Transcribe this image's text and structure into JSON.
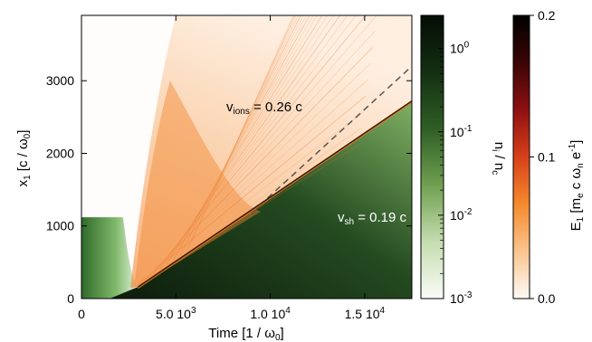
{
  "chart_data": {
    "type": "heatmap",
    "x_axis": {
      "label_main": "Time [1 / ω",
      "label_sub": "0",
      "label_end": "]",
      "range": [
        0,
        17500
      ],
      "ticks": [
        {
          "value": 0,
          "mant": "0",
          "exp": ""
        },
        {
          "value": 5000,
          "mant": "5.0 10",
          "exp": "3"
        },
        {
          "value": 10000,
          "mant": "1.0 10",
          "exp": "4"
        },
        {
          "value": 15000,
          "mant": "1.5 10",
          "exp": "4"
        }
      ]
    },
    "y_axis": {
      "label_main": "x",
      "label_sub1": "1",
      "label_mid": " [c / ω",
      "label_sub2": "0",
      "label_end": "]",
      "range": [
        0,
        3900
      ],
      "ticks": [
        0,
        1000,
        2000,
        3000
      ]
    },
    "annotations": {
      "ions": {
        "pre": "v",
        "sub": "ions",
        "post": " = 0.26 c"
      },
      "shock": {
        "pre": "v",
        "sub": "sh",
        "post": " = 0.19 c"
      }
    },
    "fronts": {
      "ion_front": {
        "velocity": 0.26,
        "x_range": [
          9000,
          17500
        ],
        "y_range": [
          1180,
          3200
        ],
        "style": "dashed"
      },
      "shock_front": {
        "velocity": 0.19,
        "x_range": [
          3000,
          17500
        ],
        "y_range": [
          160,
          2720
        ],
        "style": "solid"
      }
    },
    "colorbar_density": {
      "label_main": "n",
      "label_sub1": "i",
      "label_mid": " / n",
      "label_sub2": "c",
      "scale": "log",
      "range": [
        0.001,
        2.5
      ],
      "ticks": [
        {
          "value": 0.001,
          "exp": "-3"
        },
        {
          "value": 0.01,
          "exp": "-2"
        },
        {
          "value": 0.1,
          "exp": "-1"
        },
        {
          "value": 1,
          "exp": "0"
        }
      ],
      "colors": [
        "#fbfcf8",
        "#c5ddb0",
        "#6fa050",
        "#2f5e25",
        "#132f12",
        "#050c05"
      ]
    },
    "colorbar_field": {
      "label_main": "E",
      "label_sub1": "1",
      "label_mid": " [m",
      "label_sub2": "e",
      "label_mid2": " c ω",
      "label_sub3": "n",
      "label_mid3": " e",
      "label_sup": "-1",
      "label_end": "]",
      "range": [
        0.0,
        0.2
      ],
      "ticks": [
        {
          "value": 0.0,
          "text": "0.0"
        },
        {
          "value": 0.1,
          "text": "0.1"
        },
        {
          "value": 0.2,
          "text": "0.2"
        }
      ],
      "colors": [
        "#fdfbf6",
        "#fbc48e",
        "#f58a2c",
        "#d8401a",
        "#8c1010",
        "#3a0505",
        "#000000"
      ]
    }
  }
}
